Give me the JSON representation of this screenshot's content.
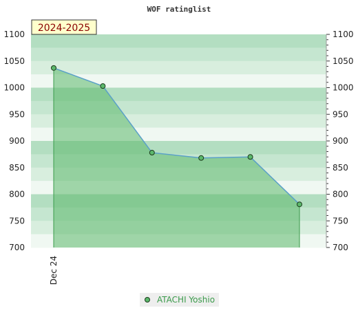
{
  "chart_data": {
    "type": "area",
    "title": "WOF ratinglist",
    "season_label": "2024-2025",
    "xlabel": "",
    "ylabel": "",
    "x_tick_labels": [
      "Dec 24"
    ],
    "ylim": [
      700,
      1100
    ],
    "y_ticks": [
      700,
      750,
      800,
      850,
      900,
      950,
      1000,
      1050,
      1100
    ],
    "grid": "horizontal bands",
    "legend_position": "bottom-center",
    "series": [
      {
        "name": "ATACHI Yoshio",
        "values": [
          1037,
          1003,
          878,
          868,
          870,
          781
        ]
      }
    ],
    "colors": {
      "fill": "#5cb86c",
      "line": "#5aa0c8",
      "marker": "#5cb86c",
      "band_dark": "#b3dec1",
      "band_light": "#f0f8f2",
      "legend_text": "#3a9a4a",
      "season_box": "#ffffcc",
      "season_text": "#8b0000"
    }
  }
}
